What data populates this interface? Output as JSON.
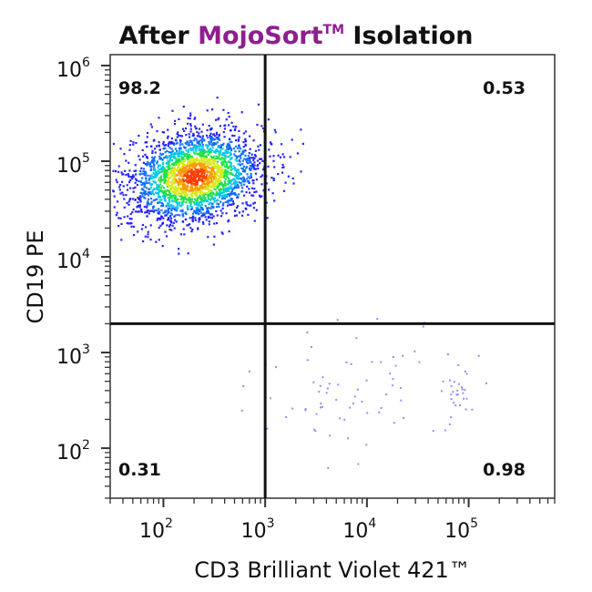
{
  "chart_data": {
    "type": "scatter",
    "title": {
      "before": "After ",
      "brand": "MojoSort",
      "brand_mark": "TM",
      "after": " Isolation"
    },
    "xlabel": "CD3 Brilliant Violet 421™",
    "ylabel": "CD19 PE",
    "x_scale": "log",
    "y_scale": "log",
    "xlim": [
      30,
      700000
    ],
    "ylim": [
      30,
      1300000
    ],
    "x_ticks": [
      {
        "value": 100,
        "base": "10",
        "exp": "2"
      },
      {
        "value": 1000,
        "base": "10",
        "exp": "3"
      },
      {
        "value": 10000,
        "base": "10",
        "exp": "4"
      },
      {
        "value": 100000,
        "base": "10",
        "exp": "5"
      }
    ],
    "y_ticks": [
      {
        "value": 100,
        "base": "10",
        "exp": "2"
      },
      {
        "value": 1000,
        "base": "10",
        "exp": "3"
      },
      {
        "value": 10000,
        "base": "10",
        "exp": "4"
      },
      {
        "value": 100000,
        "base": "10",
        "exp": "5"
      },
      {
        "value": 1000000,
        "base": "10",
        "exp": "6"
      }
    ],
    "gates": {
      "x": 1000,
      "y": 2000
    },
    "quadrants": {
      "upper_left": "98.2",
      "upper_right": "0.53",
      "lower_left": "0.31",
      "lower_right": "0.98"
    },
    "populations": [
      {
        "x_center": 200,
        "y_center": 70000,
        "x_spread_decades": 0.33,
        "y_spread_decades": 0.24,
        "points": 2600
      },
      {
        "x_center": 5000,
        "y_center": 400,
        "x_spread_decades": 0.45,
        "y_spread_decades": 0.35,
        "points": 70
      },
      {
        "x_center": 80000,
        "y_center": 450,
        "x_spread_decades": 0.1,
        "y_spread_decades": 0.2,
        "points": 30
      }
    ],
    "density_colors": [
      "#1a1aff",
      "#0a6cff",
      "#00c8e6",
      "#1ee04a",
      "#d9ea1a",
      "#ff9a00",
      "#ff3d00"
    ]
  }
}
